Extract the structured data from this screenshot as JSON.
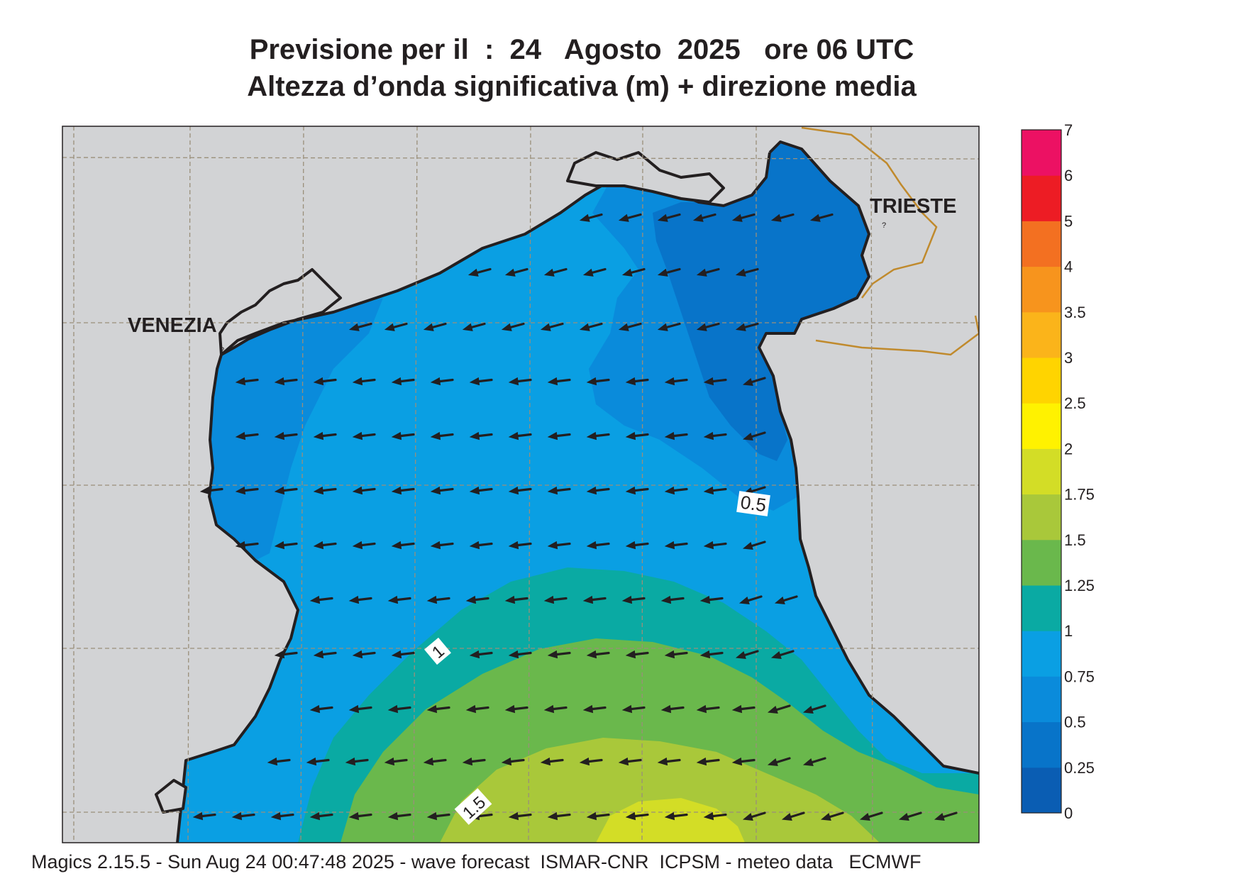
{
  "header": {
    "title_line1": "Previsione per il  :  24   Agosto  2025   ore 06 UTC",
    "title_line2": "Altezza d’onda significativa (m) + direzione media"
  },
  "map": {
    "city_labels": [
      "VENEZIA",
      "TRIESTE"
    ],
    "contour_labels": [
      "0.5",
      "1",
      "1.5"
    ],
    "colors": {
      "land": "#d2d3d5",
      "coast": "#231f20",
      "border": "#c08a2d",
      "grid": "#9a8f7a"
    }
  },
  "colorbar": {
    "labels": [
      "0",
      "0.25",
      "0.5",
      "0.75",
      "1",
      "1.25",
      "1.5",
      "1.75",
      "2",
      "2.5",
      "3",
      "3.5",
      "4",
      "5",
      "6",
      "7"
    ],
    "colors": [
      "#0a5db3",
      "#0874c9",
      "#0a8bdb",
      "#0a9fe3",
      "#0aaaa3",
      "#6ab84c",
      "#a9c83a",
      "#d3dd26",
      "#fff200",
      "#ffd400",
      "#fbb41a",
      "#f7941d",
      "#f37021",
      "#ed1c24",
      "#ec1163"
    ]
  },
  "footer": {
    "text": "Magics 2.15.5 - Sun Aug 24 00:47:48 2025 - wave forecast  ISMAR-CNR  ICPSM - meteo data   ECMWF"
  }
}
